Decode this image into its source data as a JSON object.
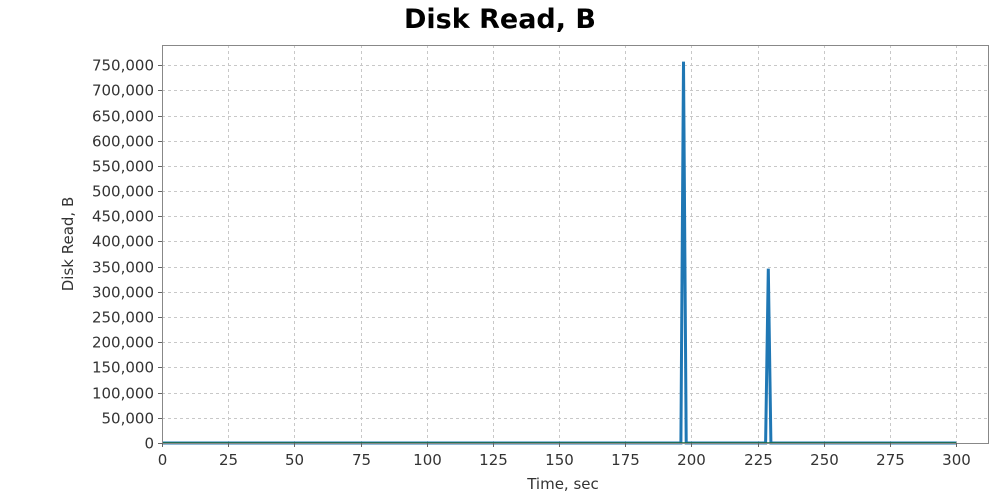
{
  "chart_data": {
    "type": "line",
    "title": "Disk Read, B",
    "xlabel": "Time, sec",
    "ylabel": "Disk Read, B",
    "xlim": [
      0,
      312
    ],
    "ylim": [
      0,
      790000
    ],
    "x_ticks": [
      0,
      25,
      50,
      75,
      100,
      125,
      150,
      175,
      200,
      225,
      250,
      275,
      300
    ],
    "x_tick_labels": [
      "0",
      "25",
      "50",
      "75",
      "100",
      "125",
      "150",
      "175",
      "200",
      "225",
      "250",
      "275",
      "300"
    ],
    "y_ticks": [
      0,
      50000,
      100000,
      150000,
      200000,
      250000,
      300000,
      350000,
      400000,
      450000,
      500000,
      550000,
      600000,
      650000,
      700000,
      750000
    ],
    "y_tick_labels": [
      "0",
      "50,000",
      "100,000",
      "150,000",
      "200,000",
      "250,000",
      "300,000",
      "350,000",
      "400,000",
      "450,000",
      "500,000",
      "550,000",
      "600,000",
      "650,000",
      "700,000",
      "750,000"
    ],
    "grid": true,
    "series": [
      {
        "color": "#1f77b4",
        "x": [
          0,
          196,
          197,
          198,
          228,
          229,
          230,
          300
        ],
        "y": [
          0,
          0,
          757000,
          0,
          0,
          346000,
          0,
          0
        ]
      }
    ]
  },
  "colors": {
    "background": "#ffffff",
    "plot_border": "#888888",
    "grid": "#c8c8c8",
    "baseline": "#1a6e3a"
  }
}
